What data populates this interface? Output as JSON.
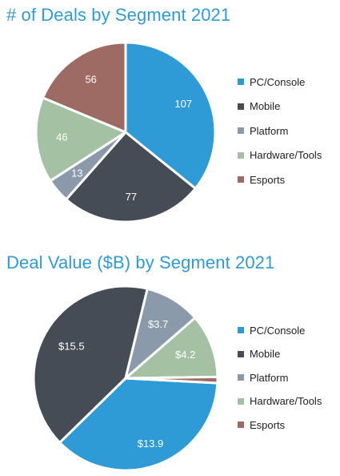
{
  "chart_data": [
    {
      "type": "pie",
      "title": "# of Deals by Segment 2021",
      "categories": [
        "PC/Console",
        "Mobile",
        "Platform",
        "Hardware/Tools",
        "Esports"
      ],
      "values": [
        107,
        77,
        13,
        46,
        56
      ],
      "data_labels": [
        "107",
        "77",
        "13",
        "46",
        "56"
      ],
      "colors": [
        "#2e9bd6",
        "#464c56",
        "#8b9aab",
        "#a5c1a4",
        "#9e6a64"
      ],
      "start_angle_deg": 0,
      "direction": "clockwise",
      "legend_position": "right"
    },
    {
      "type": "pie",
      "title": "Deal Value ($B) by Segment 2021",
      "categories": [
        "PC/Console",
        "Mobile",
        "Platform",
        "Hardware/Tools",
        "Esports"
      ],
      "values": [
        13.9,
        15.5,
        3.7,
        4.2,
        0.4
      ],
      "data_labels": [
        "$13.9",
        "$15.5",
        "$3.7",
        "$4.2",
        ""
      ],
      "colors": [
        "#2e9bd6",
        "#464c56",
        "#8b9aab",
        "#a5c1a4",
        "#9e6a64"
      ],
      "start_angle_deg": 93,
      "direction": "clockwise",
      "legend_position": "right"
    }
  ]
}
